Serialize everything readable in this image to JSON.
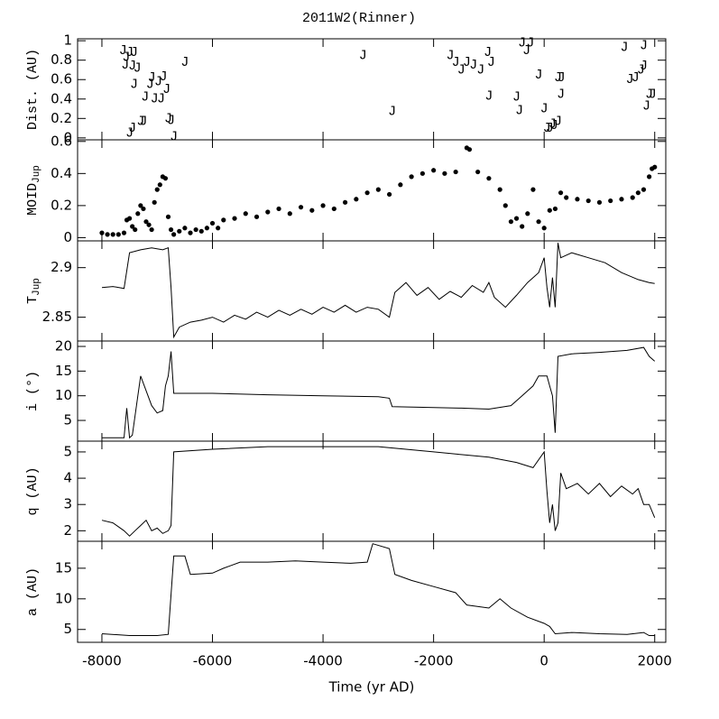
{
  "title": "2011W2(Rinner)",
  "axis": {
    "xlabel": "Time (yr AD)",
    "xlim": [
      -8440,
      2200
    ],
    "xticks": [
      -8000,
      -6000,
      -4000,
      -2000,
      0,
      2000
    ]
  },
  "chart_data": [
    {
      "type": "scatter",
      "marker": "J",
      "ylabel": "Dist. (AU)",
      "ylim": [
        -0.02,
        1.02
      ],
      "yticks": [
        0,
        0.2,
        0.4,
        0.6,
        0.8,
        1
      ],
      "x": [
        -7620,
        -7560,
        -7500,
        -7420,
        -7580,
        -7450,
        -7360,
        -7420,
        -7220,
        -7130,
        -7100,
        -7050,
        -6980,
        -6930,
        -6890,
        -6830,
        -6800,
        -6750,
        -6700,
        -6500,
        -7500,
        -7450,
        -7300,
        -7250,
        -3280,
        -2750,
        -1700,
        -1600,
        -1500,
        -1400,
        -1280,
        -1150,
        -1020,
        -960,
        -1000,
        -500,
        -450,
        -400,
        -320,
        -250,
        -100,
        0,
        50,
        100,
        150,
        180,
        250,
        250,
        310,
        300,
        1450,
        1550,
        1650,
        1750,
        1800,
        1800,
        1850,
        1900,
        1960
      ],
      "values": [
        0.9,
        0.83,
        0.88,
        0.88,
        0.75,
        0.74,
        0.72,
        0.55,
        0.42,
        0.55,
        0.62,
        0.4,
        0.58,
        0.4,
        0.63,
        0.5,
        0.2,
        0.18,
        0.01,
        0.78,
        0.05,
        0.1,
        0.17,
        0.17,
        0.85,
        0.27,
        0.85,
        0.78,
        0.7,
        0.78,
        0.75,
        0.7,
        0.88,
        0.78,
        0.43,
        0.42,
        0.28,
        0.98,
        0.9,
        0.98,
        0.65,
        0.3,
        0.1,
        0.1,
        0.14,
        0.13,
        0.17,
        0.62,
        0.62,
        0.45,
        0.93,
        0.6,
        0.62,
        0.7,
        0.95,
        0.74,
        0.33,
        0.45,
        0.45
      ]
    },
    {
      "type": "scatter",
      "ylabel": "MOID",
      "ylabel_sub": "Jup",
      "ylim": [
        -0.02,
        0.61
      ],
      "yticks": [
        0,
        0.2,
        0.4,
        0.6
      ],
      "x": [
        -8000,
        -7900,
        -7800,
        -7700,
        -7600,
        -7550,
        -7500,
        -7450,
        -7400,
        -7350,
        -7300,
        -7250,
        -7200,
        -7150,
        -7100,
        -7050,
        -7000,
        -6950,
        -6900,
        -6850,
        -6800,
        -6750,
        -6700,
        -6600,
        -6500,
        -6400,
        -6300,
        -6200,
        -6100,
        -6000,
        -5900,
        -5800,
        -5600,
        -5400,
        -5200,
        -5000,
        -4800,
        -4600,
        -4400,
        -4200,
        -4000,
        -3800,
        -3600,
        -3400,
        -3200,
        -3000,
        -2800,
        -2600,
        -2400,
        -2200,
        -2000,
        -1800,
        -1600,
        -1400,
        -1350,
        -1200,
        -1000,
        -800,
        -700,
        -600,
        -500,
        -400,
        -300,
        -200,
        -100,
        0,
        100,
        200,
        300,
        400,
        600,
        800,
        1000,
        1200,
        1400,
        1600,
        1700,
        1800,
        1900,
        1950,
        2000
      ],
      "values": [
        0.03,
        0.02,
        0.02,
        0.02,
        0.03,
        0.11,
        0.12,
        0.07,
        0.05,
        0.15,
        0.2,
        0.18,
        0.1,
        0.08,
        0.05,
        0.22,
        0.3,
        0.33,
        0.38,
        0.37,
        0.13,
        0.05,
        0.02,
        0.04,
        0.06,
        0.03,
        0.05,
        0.04,
        0.06,
        0.09,
        0.06,
        0.11,
        0.12,
        0.15,
        0.13,
        0.16,
        0.18,
        0.15,
        0.19,
        0.17,
        0.2,
        0.18,
        0.22,
        0.24,
        0.28,
        0.3,
        0.27,
        0.33,
        0.38,
        0.4,
        0.42,
        0.4,
        0.41,
        0.56,
        0.55,
        0.41,
        0.37,
        0.3,
        0.2,
        0.1,
        0.12,
        0.07,
        0.15,
        0.3,
        0.1,
        0.06,
        0.17,
        0.18,
        0.28,
        0.25,
        0.24,
        0.23,
        0.22,
        0.23,
        0.24,
        0.25,
        0.28,
        0.3,
        0.38,
        0.43,
        0.44
      ]
    },
    {
      "type": "line",
      "ylabel": "T",
      "ylabel_sub": "Jup",
      "ylim": [
        2.826,
        2.927
      ],
      "yticks": [
        2.85,
        2.9
      ],
      "x": [
        -8000,
        -7800,
        -7600,
        -7500,
        -7300,
        -7100,
        -6900,
        -6800,
        -6750,
        -6700,
        -6600,
        -6400,
        -6200,
        -6000,
        -5800,
        -5600,
        -5400,
        -5200,
        -5000,
        -4800,
        -4600,
        -4400,
        -4200,
        -4000,
        -3800,
        -3600,
        -3400,
        -3200,
        -3000,
        -2800,
        -2700,
        -2500,
        -2300,
        -2100,
        -1900,
        -1700,
        -1500,
        -1300,
        -1100,
        -1000,
        -900,
        -700,
        -500,
        -300,
        -100,
        0,
        50,
        100,
        150,
        200,
        250,
        300,
        500,
        800,
        1100,
        1400,
        1700,
        1900,
        2000
      ],
      "values": [
        2.88,
        2.881,
        2.879,
        2.915,
        2.918,
        2.92,
        2.918,
        2.92,
        2.88,
        2.83,
        2.84,
        2.845,
        2.847,
        2.85,
        2.845,
        2.852,
        2.848,
        2.855,
        2.85,
        2.857,
        2.852,
        2.858,
        2.853,
        2.86,
        2.855,
        2.862,
        2.855,
        2.86,
        2.858,
        2.85,
        2.875,
        2.885,
        2.872,
        2.88,
        2.868,
        2.876,
        2.87,
        2.882,
        2.875,
        2.885,
        2.87,
        2.86,
        2.872,
        2.885,
        2.895,
        2.91,
        2.88,
        2.86,
        2.89,
        2.86,
        2.925,
        2.91,
        2.915,
        2.91,
        2.905,
        2.895,
        2.888,
        2.885,
        2.884
      ]
    },
    {
      "type": "line",
      "ylabel": "i (°)",
      "ylim": [
        0.8,
        21.1
      ],
      "yticks": [
        5,
        10,
        15,
        20
      ],
      "x": [
        -8000,
        -7600,
        -7550,
        -7500,
        -7450,
        -7350,
        -7300,
        -7200,
        -7100,
        -7000,
        -6900,
        -6850,
        -6800,
        -6750,
        -6700,
        -6000,
        -5000,
        -4000,
        -3000,
        -2800,
        -2750,
        -2000,
        -1500,
        -1000,
        -600,
        -400,
        -200,
        -100,
        50,
        100,
        150,
        200,
        250,
        500,
        1000,
        1500,
        1800,
        1900,
        2000
      ],
      "values": [
        1.5,
        1.5,
        7.5,
        1.5,
        2,
        10,
        14,
        11,
        8,
        6.5,
        7,
        12,
        14,
        19,
        10.5,
        10.5,
        10.2,
        10,
        9.8,
        9.5,
        7.8,
        7.6,
        7.5,
        7.3,
        8,
        10,
        12,
        14,
        14,
        12,
        10,
        2.5,
        18,
        18.5,
        18.8,
        19.2,
        19.8,
        18,
        17
      ]
    },
    {
      "type": "line",
      "ylabel": "q (AU)",
      "ylim": [
        1.6,
        5.41
      ],
      "yticks": [
        2,
        3,
        4,
        5
      ],
      "x": [
        -8000,
        -7800,
        -7600,
        -7500,
        -7400,
        -7300,
        -7200,
        -7100,
        -7000,
        -6900,
        -6800,
        -6750,
        -6700,
        -6000,
        -5000,
        -4000,
        -3000,
        -2500,
        -2000,
        -1500,
        -1000,
        -500,
        -200,
        0,
        50,
        100,
        150,
        200,
        250,
        300,
        400,
        600,
        800,
        1000,
        1200,
        1400,
        1600,
        1700,
        1800,
        1900,
        2000
      ],
      "values": [
        2.4,
        2.3,
        2.0,
        1.8,
        2.0,
        2.2,
        2.4,
        2.0,
        2.1,
        1.9,
        2.0,
        2.2,
        5.0,
        5.1,
        5.2,
        5.2,
        5.2,
        5.1,
        5.0,
        4.9,
        4.8,
        4.6,
        4.4,
        5.0,
        3.5,
        2.3,
        3.0,
        2.0,
        2.3,
        4.2,
        3.6,
        3.8,
        3.4,
        3.8,
        3.3,
        3.7,
        3.4,
        3.6,
        3.0,
        3.0,
        2.5
      ]
    },
    {
      "type": "line",
      "ylabel": "a (AU)",
      "ylim": [
        2.9,
        19.4
      ],
      "yticks": [
        5,
        10,
        15
      ],
      "x": [
        -8000,
        -7500,
        -7000,
        -6800,
        -6700,
        -6500,
        -6400,
        -6000,
        -5800,
        -5500,
        -5000,
        -4500,
        -4000,
        -3500,
        -3200,
        -3100,
        -2800,
        -2700,
        -2400,
        -2000,
        -1600,
        -1400,
        -1000,
        -800,
        -600,
        -300,
        0,
        100,
        200,
        500,
        1000,
        1500,
        1800,
        1900,
        2000
      ],
      "values": [
        4.3,
        4.0,
        4.0,
        4.2,
        17,
        17,
        14,
        14.2,
        15,
        16,
        16,
        16.2,
        16,
        15.8,
        16,
        19,
        18.2,
        14,
        13,
        12,
        11,
        9,
        8.5,
        10,
        8.5,
        7,
        6,
        5.5,
        4.3,
        4.5,
        4.3,
        4.2,
        4.5,
        4.0,
        4
      ]
    }
  ]
}
